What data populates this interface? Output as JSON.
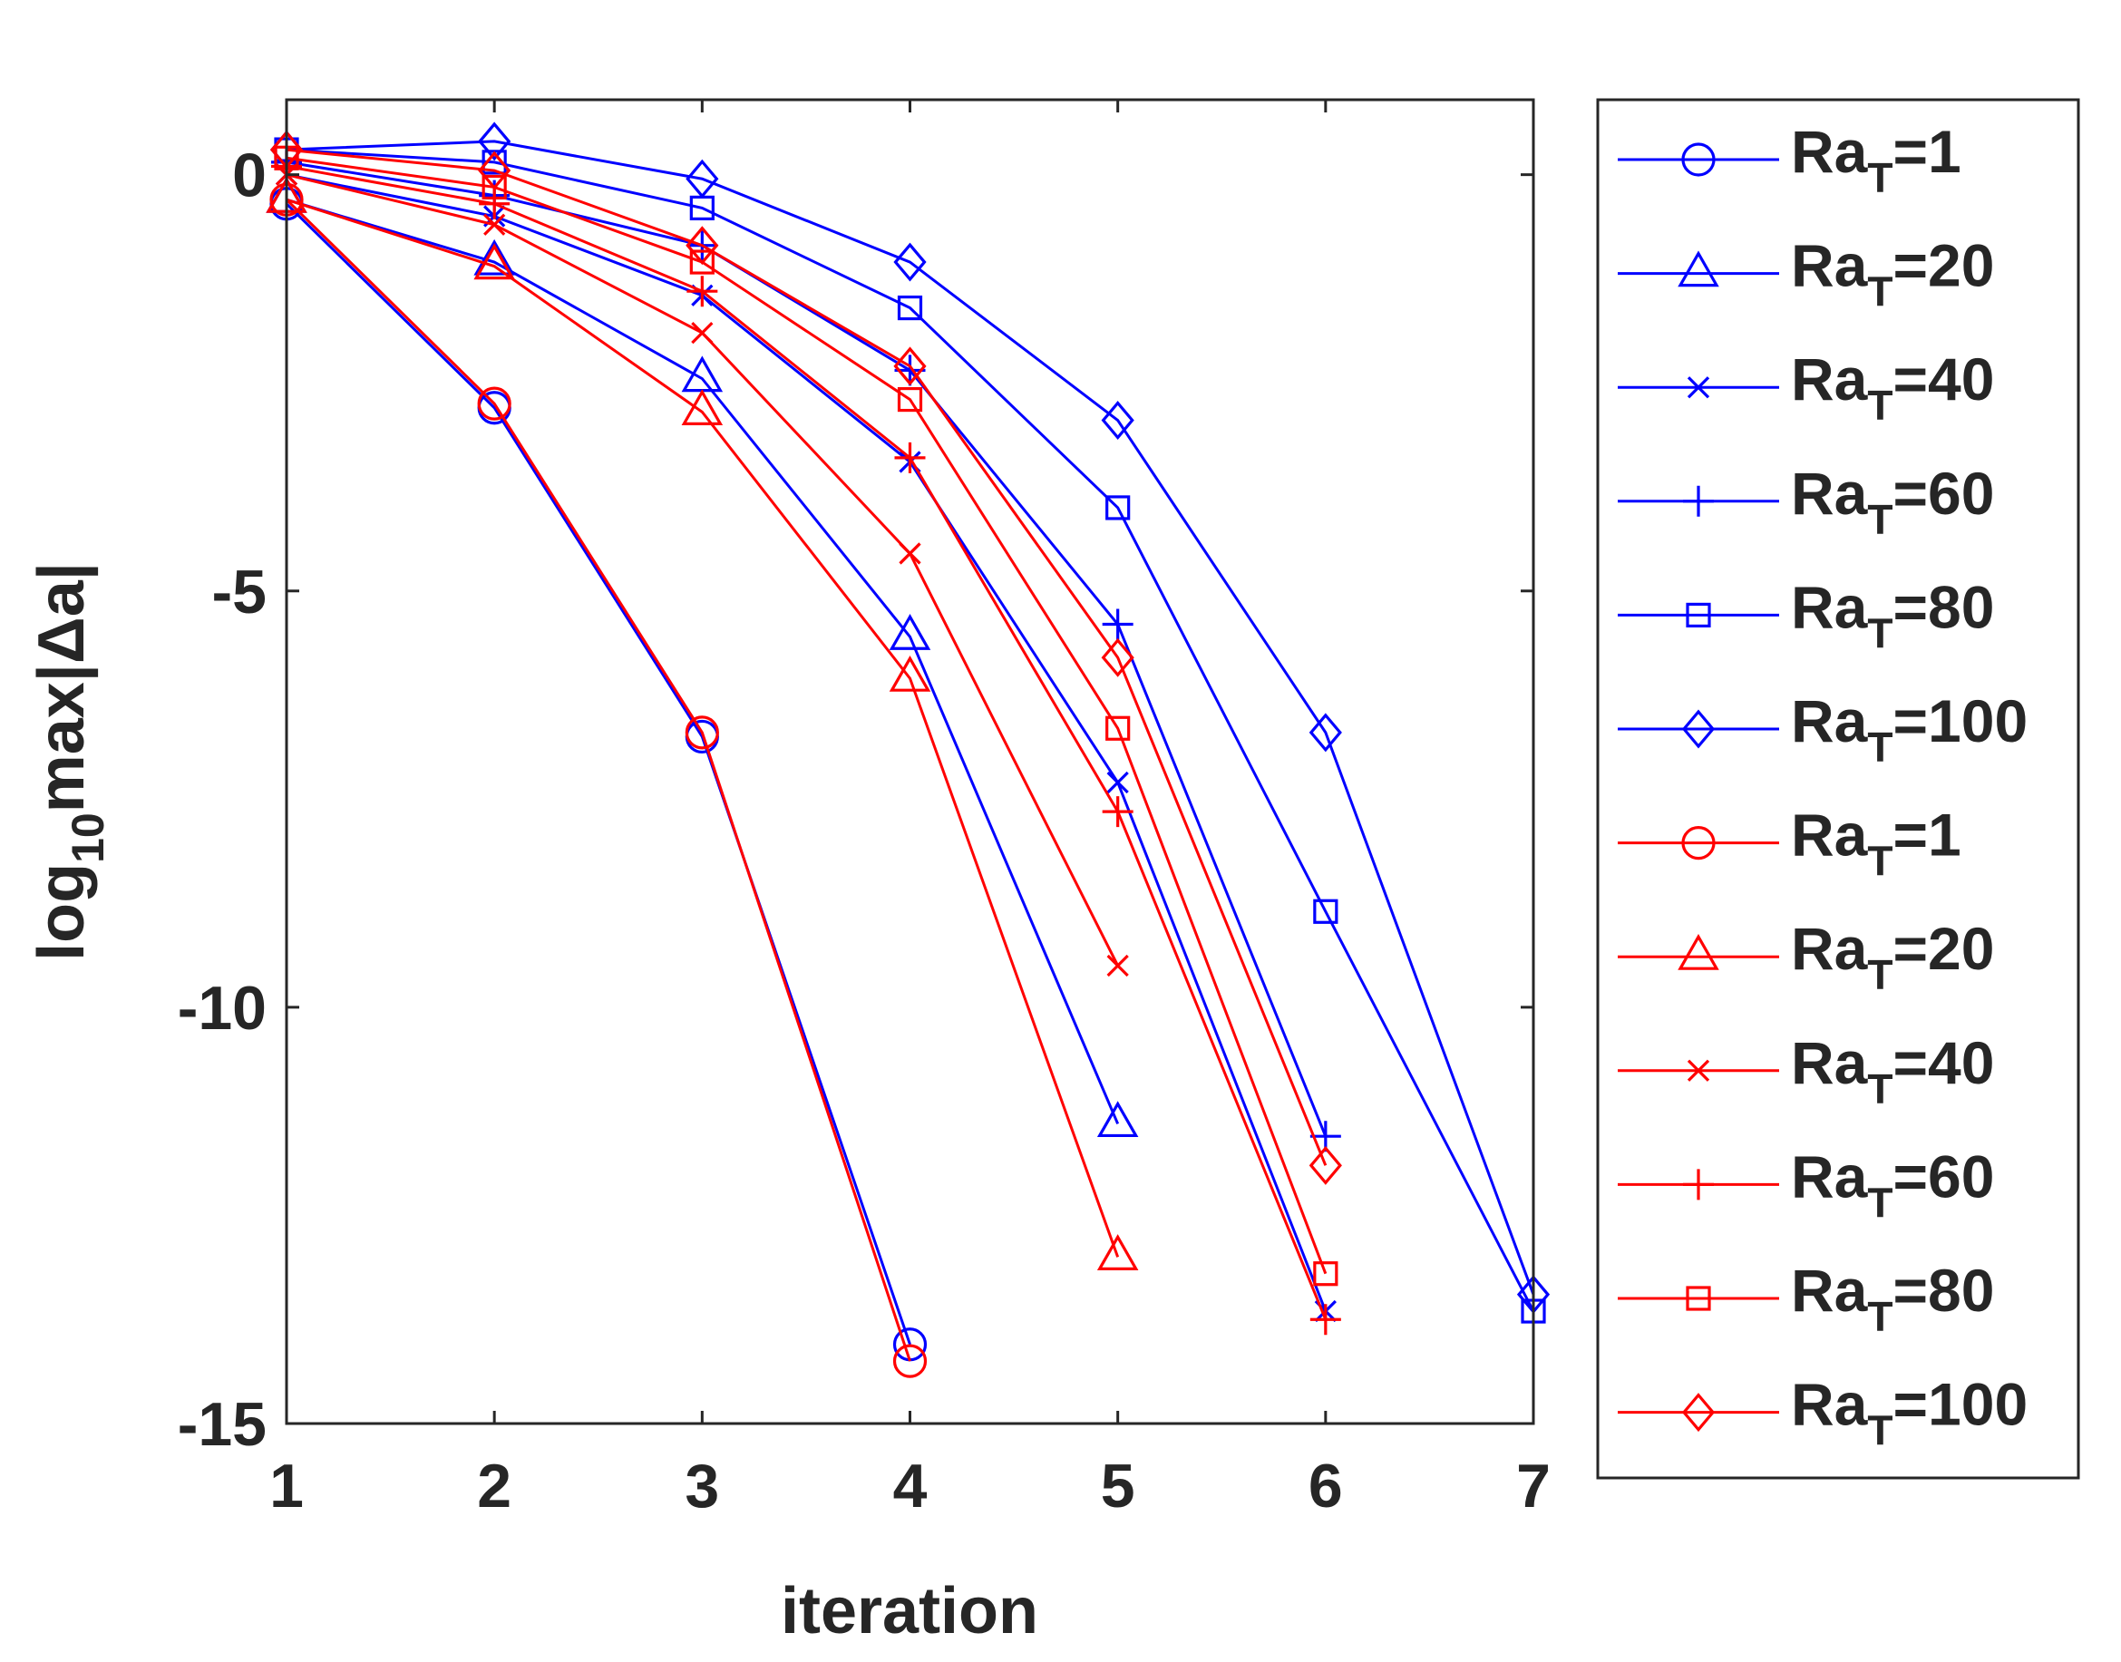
{
  "chart_data": {
    "type": "line",
    "xlabel": "iteration",
    "ylabel": {
      "main": "log",
      "sub": "10",
      "rest": "max|Δa|"
    },
    "xlim": [
      1,
      7
    ],
    "ylim": [
      -15,
      0.9
    ],
    "xticks": [
      1,
      2,
      3,
      4,
      5,
      6,
      7
    ],
    "yticks": [
      0,
      -5,
      -10,
      -15
    ],
    "legend_position": "outside-right",
    "series": [
      {
        "name": "Ra",
        "sub": "T",
        "value_label": "=1",
        "color": "#0000ff",
        "marker": "circle",
        "x": [
          1,
          2,
          3,
          4
        ],
        "y": [
          -0.35,
          -2.8,
          -6.75,
          -14.05
        ]
      },
      {
        "name": "Ra",
        "sub": "T",
        "value_label": "=20",
        "color": "#0000ff",
        "marker": "triangle",
        "x": [
          1,
          2,
          3,
          4,
          5
        ],
        "y": [
          -0.3,
          -1.05,
          -2.45,
          -5.55,
          -11.4
        ]
      },
      {
        "name": "Ra",
        "sub": "T",
        "value_label": "=40",
        "color": "#0000ff",
        "marker": "x",
        "x": [
          1,
          2,
          3,
          4,
          5,
          6
        ],
        "y": [
          0.0,
          -0.5,
          -1.45,
          -3.45,
          -7.3,
          -13.65
        ]
      },
      {
        "name": "Ra",
        "sub": "T",
        "value_label": "=60",
        "color": "#0000ff",
        "marker": "plus",
        "x": [
          1,
          2,
          3,
          4,
          5,
          6
        ],
        "y": [
          0.15,
          -0.25,
          -0.85,
          -2.35,
          -5.4,
          -11.55
        ]
      },
      {
        "name": "Ra",
        "sub": "T",
        "value_label": "=80",
        "color": "#0000ff",
        "marker": "square",
        "x": [
          1,
          2,
          3,
          4,
          5,
          6,
          7
        ],
        "y": [
          0.3,
          0.15,
          -0.4,
          -1.6,
          -4.0,
          -8.85,
          -13.65
        ]
      },
      {
        "name": "Ra",
        "sub": "T",
        "value_label": "=100",
        "color": "#0000ff",
        "marker": "diamond",
        "x": [
          1,
          2,
          3,
          4,
          5,
          6,
          7
        ],
        "y": [
          0.3,
          0.4,
          -0.05,
          -1.05,
          -2.95,
          -6.7,
          -13.45
        ]
      },
      {
        "name": "Ra",
        "sub": "T",
        "value_label": "=1",
        "color": "#ff0000",
        "marker": "circle",
        "x": [
          1,
          2,
          3,
          4
        ],
        "y": [
          -0.3,
          -2.75,
          -6.7,
          -14.25
        ]
      },
      {
        "name": "Ra",
        "sub": "T",
        "value_label": "=20",
        "color": "#ff0000",
        "marker": "triangle",
        "x": [
          1,
          2,
          3,
          4,
          5
        ],
        "y": [
          -0.3,
          -1.1,
          -2.85,
          -6.05,
          -13.0
        ]
      },
      {
        "name": "Ra",
        "sub": "T",
        "value_label": "=40",
        "color": "#ff0000",
        "marker": "x",
        "x": [
          1,
          2,
          3,
          4,
          5
        ],
        "y": [
          0.0,
          -0.6,
          -1.9,
          -4.55,
          -9.5
        ]
      },
      {
        "name": "Ra",
        "sub": "T",
        "value_label": "=60",
        "color": "#ff0000",
        "marker": "plus",
        "x": [
          1,
          2,
          3,
          4,
          5,
          6
        ],
        "y": [
          0.1,
          -0.35,
          -1.4,
          -3.4,
          -7.65,
          -13.75
        ]
      },
      {
        "name": "Ra",
        "sub": "T",
        "value_label": "=80",
        "color": "#ff0000",
        "marker": "square",
        "x": [
          1,
          2,
          3,
          4,
          5,
          6
        ],
        "y": [
          0.2,
          -0.15,
          -1.05,
          -2.7,
          -6.65,
          -13.2
        ]
      },
      {
        "name": "Ra",
        "sub": "T",
        "value_label": "=100",
        "color": "#ff0000",
        "marker": "diamond",
        "x": [
          1,
          2,
          3,
          4,
          5,
          6
        ],
        "y": [
          0.3,
          0.05,
          -0.85,
          -2.3,
          -5.8,
          -11.9
        ]
      }
    ]
  }
}
